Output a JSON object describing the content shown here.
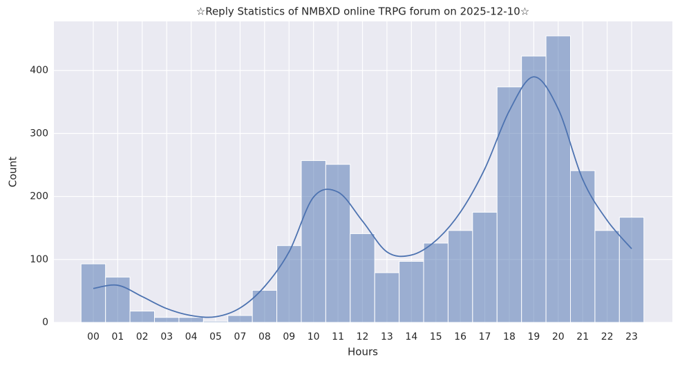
{
  "chart_data": {
    "type": "histogram",
    "title": "☆Reply Statistics of NMBXD online TRPG forum on 2025-12-10☆",
    "x_label": "Hours",
    "y_label": "Count",
    "categories": [
      "00",
      "01",
      "02",
      "03",
      "04",
      "05",
      "07",
      "08",
      "09",
      "10",
      "11",
      "12",
      "13",
      "14",
      "15",
      "16",
      "17",
      "18",
      "19",
      "20",
      "21",
      "22",
      "23"
    ],
    "values": [
      93,
      72,
      18,
      8,
      8,
      2,
      11,
      51,
      122,
      257,
      251,
      141,
      79,
      97,
      126,
      146,
      175,
      374,
      423,
      455,
      241,
      146,
      167
    ],
    "kde_values": [
      54,
      59,
      41,
      22,
      11,
      9,
      23,
      57,
      112,
      199,
      207,
      161,
      112,
      107,
      130,
      175,
      244,
      336,
      390,
      339,
      227,
      162,
      117
    ],
    "color": "#4c72b0",
    "ylim": [
      0,
      478
    ],
    "yticks": [
      0,
      100,
      200,
      300,
      400
    ],
    "grid": true
  }
}
